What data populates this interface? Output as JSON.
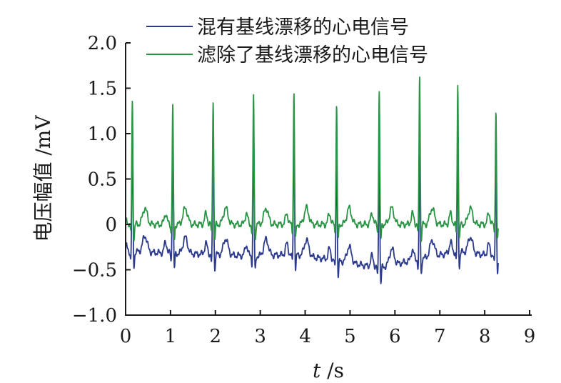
{
  "chart_data": {
    "type": "line",
    "xlabel": "t /s",
    "ylabel": "电压幅值 /mV",
    "xlim": [
      0,
      9
    ],
    "ylim": [
      -1.0,
      2.0
    ],
    "x_ticks": [
      "0",
      "1",
      "2",
      "3",
      "4",
      "5",
      "6",
      "7",
      "8",
      "9"
    ],
    "y_ticks": [
      "−1.0",
      "−0.5",
      "0",
      "0.5",
      "1.0",
      "1.5",
      "2.0"
    ],
    "grid": false,
    "legend_position": "top",
    "series": [
      {
        "name": "混有基线漂移的心电信号",
        "color": "#2b3a8c",
        "beat_times_s": [
          0.15,
          1.05,
          1.95,
          2.85,
          3.75,
          4.7,
          5.65,
          6.55,
          7.4,
          8.25
        ],
        "r_peak_mv": [
          1.1,
          1.0,
          1.05,
          1.1,
          1.15,
          0.95,
          0.8,
          0.75,
          0.85,
          0.75
        ],
        "baseline_mv": [
          -0.3,
          -0.32,
          -0.33,
          -0.35,
          -0.33,
          -0.4,
          -0.48,
          -0.38,
          -0.3,
          -0.35
        ]
      },
      {
        "name": "滤除了基线漂移的心电信号",
        "color": "#2a9445",
        "beat_times_s": [
          0.15,
          1.05,
          1.95,
          2.85,
          3.75,
          4.7,
          5.65,
          6.55,
          7.4,
          8.25
        ],
        "r_peak_mv": [
          1.35,
          1.3,
          1.38,
          1.42,
          1.45,
          1.32,
          1.48,
          1.65,
          1.55,
          1.25
        ],
        "baseline_mv": [
          0.0,
          0.0,
          0.0,
          0.0,
          0.0,
          0.0,
          0.0,
          0.0,
          0.0,
          0.0
        ]
      }
    ],
    "x_end_s": 8.3
  }
}
